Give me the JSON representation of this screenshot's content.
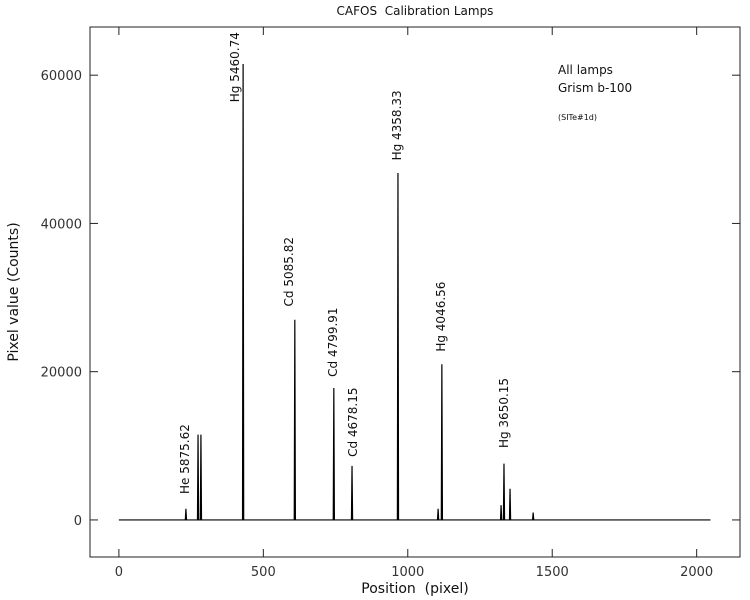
{
  "chart_data": {
    "type": "line",
    "title": "CAFOS  Calibration Lamps",
    "xlabel": "Position  (pixel)",
    "ylabel": "Pixel value (Counts)",
    "xlim": [
      -100,
      2150
    ],
    "ylim": [
      -5000,
      66500
    ],
    "xticks": [
      0,
      500,
      1000,
      1500,
      2000
    ],
    "yticks": [
      0,
      20000,
      40000,
      60000
    ],
    "color": "#000000",
    "x": [
      0,
      230,
      232,
      234,
      272,
      274,
      276,
      282,
      284,
      286,
      428,
      430,
      432,
      607,
      609,
      611,
      742,
      744,
      746,
      805,
      807,
      809,
      964,
      966,
      968,
      1103,
      1105,
      1107,
      1116,
      1118,
      1120,
      1321,
      1323,
      1325,
      1331,
      1333,
      1335,
      1352,
      1354,
      1356,
      1432,
      1434,
      1436,
      2048
    ],
    "values": [
      0,
      0,
      1500,
      0,
      0,
      11500,
      0,
      0,
      11500,
      0,
      0,
      61500,
      0,
      0,
      27000,
      0,
      0,
      17800,
      0,
      0,
      7300,
      0,
      0,
      46800,
      0,
      0,
      1500,
      0,
      0,
      21000,
      0,
      0,
      2000,
      0,
      0,
      7600,
      0,
      0,
      4200,
      0,
      0,
      1000,
      0,
      0
    ],
    "annotations": [
      {
        "text": "He 5875.62",
        "x": 229,
        "y": 3500
      },
      {
        "text": "Hg 5460.74",
        "x": 402,
        "y": 56350
      },
      {
        "text": "Cd 5085.82",
        "x": 589,
        "y": 28800
      },
      {
        "text": "Cd 4799.91",
        "x": 741,
        "y": 19300
      },
      {
        "text": "Cd 4678.15",
        "x": 810,
        "y": 8500
      },
      {
        "text": "Hg 4358.33",
        "x": 963,
        "y": 48500
      },
      {
        "text": "Hg 4046.56",
        "x": 1115,
        "y": 22700
      },
      {
        "text": "Hg 3650.15",
        "x": 1333,
        "y": 9700
      }
    ],
    "notes": [
      "All lamps",
      "Grism b-100",
      "(SITe#1d)"
    ]
  }
}
